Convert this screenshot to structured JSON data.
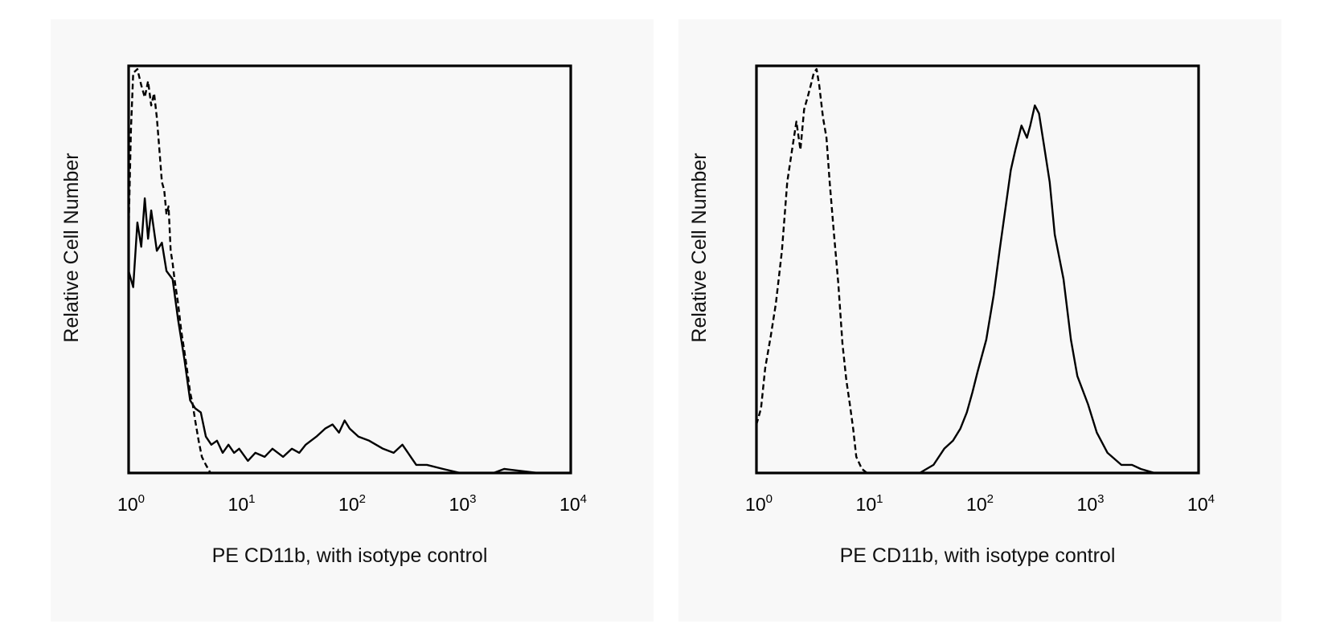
{
  "chart_data": [
    {
      "type": "line",
      "xlabel": "PE CD11b, with isotype control",
      "ylabel": "Relative Cell Number",
      "x_scale": "log",
      "xlim": [
        1,
        10000
      ],
      "ylim": [
        0,
        1
      ],
      "x_ticks": [
        {
          "base": "10",
          "exp": "0",
          "value": 1
        },
        {
          "base": "10",
          "exp": "1",
          "value": 10
        },
        {
          "base": "10",
          "exp": "2",
          "value": 100
        },
        {
          "base": "10",
          "exp": "3",
          "value": 1000
        },
        {
          "base": "10",
          "exp": "4",
          "value": 10000
        }
      ],
      "grid": false,
      "legend": "none",
      "series": [
        {
          "style": "solid",
          "x": [
            1.0,
            1.1,
            1.2,
            1.3,
            1.4,
            1.5,
            1.6,
            1.8,
            2.0,
            2.2,
            2.5,
            2.8,
            3.2,
            3.6,
            4.0,
            4.5,
            5.0,
            5.6,
            6.3,
            7.1,
            8.0,
            9.0,
            10,
            12,
            14,
            17,
            20,
            25,
            30,
            35,
            40,
            50,
            60,
            70,
            80,
            90,
            100,
            120,
            150,
            200,
            250,
            300,
            400,
            500,
            700,
            1000,
            1500,
            2000,
            2500,
            5000,
            10000
          ],
          "y": [
            0.5,
            0.46,
            0.62,
            0.56,
            0.68,
            0.58,
            0.65,
            0.55,
            0.57,
            0.5,
            0.48,
            0.38,
            0.28,
            0.18,
            0.16,
            0.15,
            0.09,
            0.07,
            0.08,
            0.05,
            0.07,
            0.05,
            0.06,
            0.03,
            0.05,
            0.04,
            0.06,
            0.04,
            0.06,
            0.05,
            0.07,
            0.09,
            0.11,
            0.12,
            0.1,
            0.13,
            0.11,
            0.09,
            0.08,
            0.06,
            0.05,
            0.07,
            0.02,
            0.02,
            0.01,
            0.0,
            0.0,
            0.0,
            0.01,
            0.0,
            0.0
          ]
        },
        {
          "style": "dashed",
          "x": [
            1.0,
            1.05,
            1.1,
            1.2,
            1.3,
            1.4,
            1.5,
            1.6,
            1.7,
            1.8,
            1.9,
            2.0,
            2.1,
            2.2,
            2.3,
            2.4,
            2.5,
            2.6,
            2.8,
            3.0,
            3.2,
            3.4,
            3.6,
            3.8,
            4.0,
            4.3,
            4.6,
            5.0,
            5.5,
            6.0,
            10000
          ],
          "y": [
            0.6,
            0.85,
            0.99,
            1.0,
            0.96,
            0.93,
            0.97,
            0.91,
            0.94,
            0.88,
            0.8,
            0.72,
            0.7,
            0.64,
            0.66,
            0.55,
            0.52,
            0.48,
            0.42,
            0.35,
            0.3,
            0.25,
            0.2,
            0.17,
            0.13,
            0.08,
            0.04,
            0.02,
            0.0,
            0.0,
            0.0
          ]
        }
      ]
    },
    {
      "type": "line",
      "xlabel": "PE CD11b, with isotype control",
      "ylabel": "Relative Cell Number",
      "x_scale": "log",
      "xlim": [
        1,
        10000
      ],
      "ylim": [
        0,
        1
      ],
      "x_ticks": [
        {
          "base": "10",
          "exp": "0",
          "value": 1
        },
        {
          "base": "10",
          "exp": "1",
          "value": 10
        },
        {
          "base": "10",
          "exp": "2",
          "value": 100
        },
        {
          "base": "10",
          "exp": "3",
          "value": 1000
        },
        {
          "base": "10",
          "exp": "4",
          "value": 10000
        }
      ],
      "grid": false,
      "legend": "none",
      "series": [
        {
          "style": "dashed",
          "x": [
            1.0,
            1.1,
            1.2,
            1.35,
            1.5,
            1.7,
            1.9,
            2.1,
            2.3,
            2.5,
            2.7,
            2.9,
            3.1,
            3.3,
            3.5,
            3.7,
            4.0,
            4.3,
            4.6,
            5.0,
            5.5,
            6.0,
            6.5,
            7.0,
            7.5,
            8.0,
            9.0,
            10,
            12,
            10000
          ],
          "y": [
            0.12,
            0.16,
            0.26,
            0.34,
            0.42,
            0.55,
            0.72,
            0.8,
            0.87,
            0.8,
            0.9,
            0.93,
            0.96,
            0.99,
            1.0,
            0.96,
            0.88,
            0.83,
            0.72,
            0.6,
            0.47,
            0.32,
            0.23,
            0.17,
            0.11,
            0.04,
            0.01,
            0.0,
            0.0,
            0.0
          ]
        },
        {
          "style": "solid",
          "x": [
            1,
            30,
            40,
            50,
            60,
            70,
            80,
            90,
            100,
            120,
            140,
            160,
            180,
            200,
            220,
            250,
            280,
            300,
            330,
            360,
            400,
            450,
            500,
            600,
            700,
            800,
            1000,
            1200,
            1500,
            2000,
            2500,
            3000,
            4000,
            6000,
            10000
          ],
          "y": [
            0.0,
            0.0,
            0.02,
            0.06,
            0.08,
            0.11,
            0.15,
            0.2,
            0.25,
            0.33,
            0.44,
            0.56,
            0.66,
            0.75,
            0.8,
            0.86,
            0.83,
            0.86,
            0.91,
            0.89,
            0.81,
            0.72,
            0.59,
            0.48,
            0.33,
            0.24,
            0.17,
            0.1,
            0.05,
            0.02,
            0.02,
            0.01,
            0.0,
            0.0,
            0.0
          ]
        }
      ]
    }
  ]
}
